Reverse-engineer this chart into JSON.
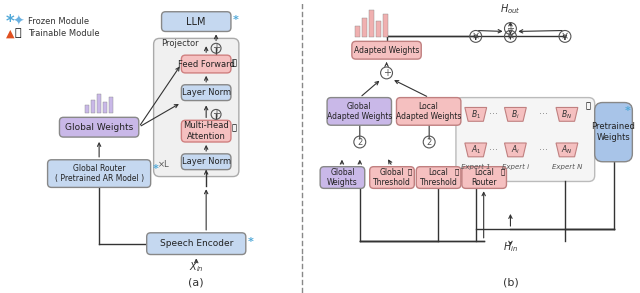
{
  "title_a": "(a)",
  "title_b": "(b)",
  "bg_color": "#ffffff",
  "legend_frozen": "Frozen Module",
  "legend_trainable": "Trainable Module",
  "box_blue_light": "#c5d8f0",
  "box_blue_mid": "#a8c4e8",
  "box_purple": "#c9b8e8",
  "box_pink_light": "#f5c0c0",
  "box_pink_darker": "#f0a0a0",
  "box_gray_light": "#e8e8e8",
  "box_white": "#ffffff",
  "arrow_color": "#333333",
  "text_color": "#222222",
  "dashed_color": "#888888"
}
